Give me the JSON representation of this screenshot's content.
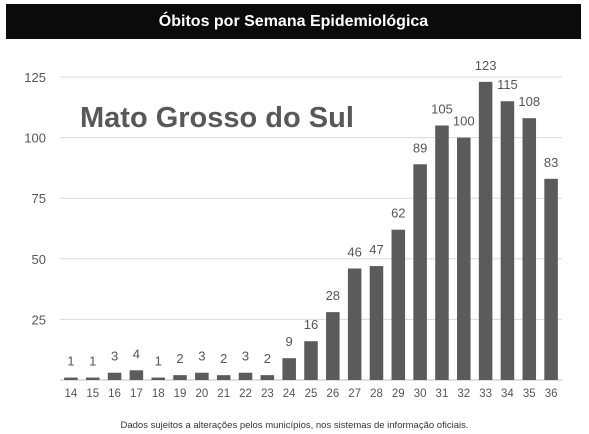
{
  "header": {
    "title": "Óbitos por Semana Epidemiológica"
  },
  "chart_data": {
    "type": "bar",
    "title": "Óbitos por Semana Epidemiológica",
    "subtitle": "Mato Grosso do Sul",
    "xlabel": "",
    "ylabel": "",
    "categories": [
      "14",
      "15",
      "16",
      "17",
      "18",
      "19",
      "20",
      "21",
      "22",
      "23",
      "24",
      "25",
      "26",
      "27",
      "28",
      "29",
      "30",
      "31",
      "32",
      "33",
      "34",
      "35",
      "36"
    ],
    "values": [
      1,
      1,
      3,
      4,
      1,
      2,
      3,
      2,
      3,
      2,
      9,
      16,
      28,
      46,
      47,
      62,
      89,
      105,
      100,
      123,
      115,
      108,
      83
    ],
    "ylim": [
      0,
      125
    ],
    "yticks": [
      25,
      50,
      75,
      100,
      125
    ],
    "grid": true,
    "legend": "none",
    "colors": {
      "bar": "#5b5b5b",
      "grid": "#d9d9d9",
      "axis": "#bfbfbf"
    }
  },
  "footnote": "Dados sujeitos a alterações pelos municípios, nos sistemas de informação oficiais."
}
